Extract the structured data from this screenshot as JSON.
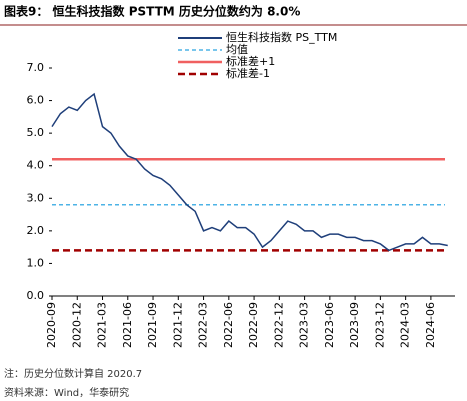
{
  "chart_data": {
    "type": "line",
    "title": "图表9： 恒生科技指数 PSTTM 历史分位数约为 8.0%",
    "x": [
      "2020-09",
      "2020-10",
      "2020-11",
      "2020-12",
      "2021-01",
      "2021-02",
      "2021-03",
      "2021-04",
      "2021-05",
      "2021-06",
      "2021-07",
      "2021-08",
      "2021-09",
      "2021-10",
      "2021-11",
      "2021-12",
      "2022-01",
      "2022-02",
      "2022-03",
      "2022-04",
      "2022-05",
      "2022-06",
      "2022-07",
      "2022-08",
      "2022-09",
      "2022-10",
      "2022-11",
      "2022-12",
      "2023-01",
      "2023-02",
      "2023-03",
      "2023-04",
      "2023-05",
      "2023-06",
      "2023-07",
      "2023-08",
      "2023-09",
      "2023-10",
      "2023-11",
      "2023-12",
      "2024-01",
      "2024-02",
      "2024-03",
      "2024-04",
      "2024-05",
      "2024-06",
      "2024-07",
      "2024-08"
    ],
    "series": [
      {
        "name": "恒生科技指数 PS_TTM",
        "color": "#1f3f7a",
        "values": [
          5.2,
          5.6,
          5.8,
          5.7,
          6.0,
          6.2,
          5.2,
          5.0,
          4.6,
          4.3,
          4.2,
          3.9,
          3.7,
          3.6,
          3.4,
          3.1,
          2.8,
          2.6,
          2.0,
          2.1,
          2.0,
          2.3,
          2.1,
          2.1,
          1.9,
          1.5,
          1.7,
          2.0,
          2.3,
          2.2,
          2.0,
          2.0,
          1.8,
          1.9,
          1.9,
          1.8,
          1.8,
          1.7,
          1.7,
          1.6,
          1.4,
          1.5,
          1.6,
          1.6,
          1.8,
          1.6,
          1.6,
          1.55
        ]
      }
    ],
    "reference_lines": [
      {
        "name": "均值",
        "value": 2.8,
        "color": "#4db3e6",
        "style": "dashed"
      },
      {
        "name": "标准差+1",
        "value": 4.2,
        "color": "#f06060",
        "style": "solid"
      },
      {
        "name": "标准差-1",
        "value": 1.4,
        "color": "#a00000",
        "style": "dashed"
      }
    ],
    "ylim": [
      0,
      7
    ],
    "yticks": [
      {
        "value": 0,
        "label": "0.0"
      },
      {
        "value": 1,
        "label": "1.0"
      },
      {
        "value": 2,
        "label": "2.0"
      },
      {
        "value": 3,
        "label": "3.0"
      },
      {
        "value": 4,
        "label": "4.0"
      },
      {
        "value": 5,
        "label": "5.0"
      },
      {
        "value": 6,
        "label": "6.0"
      },
      {
        "value": 7,
        "label": "7.0"
      }
    ],
    "xticks": [
      "2020-09",
      "2020-12",
      "2021-03",
      "2021-06",
      "2021-09",
      "2021-12",
      "2022-03",
      "2022-06",
      "2022-09",
      "2022-12",
      "2023-03",
      "2023-06",
      "2023-09",
      "2023-12",
      "2024-03",
      "2024-06"
    ],
    "notes": [
      "注：历史分位数计算自 2020.7",
      "资料来源：Wind，华泰研究"
    ]
  }
}
